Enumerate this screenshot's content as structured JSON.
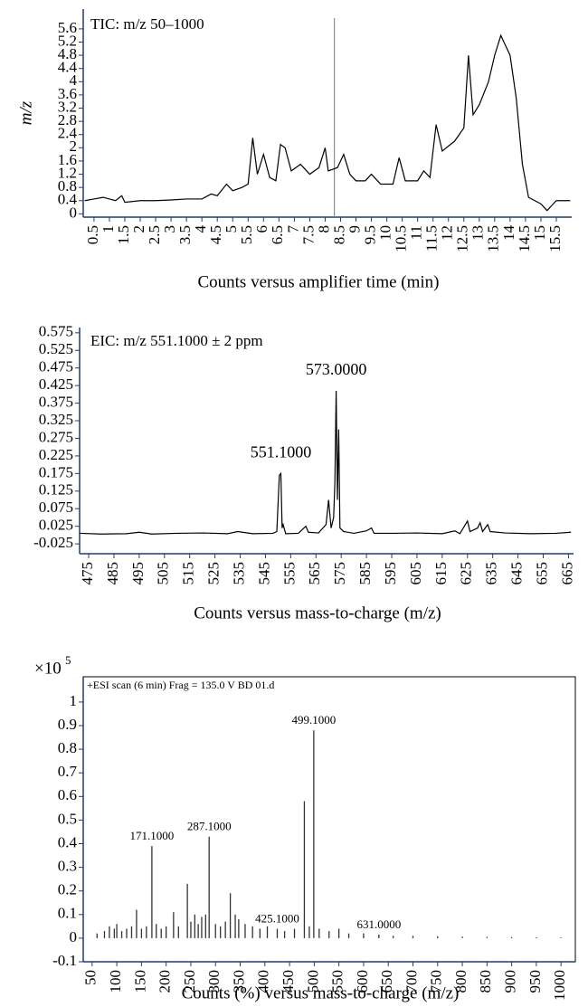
{
  "chart_data": [
    {
      "type": "line",
      "title": "TIC: m/z 50–1000",
      "x_label": "Counts versus amplifier time (min)",
      "y_label": "m/z",
      "xlim": [
        0.15,
        16
      ],
      "ylim": [
        -0.1,
        6.2
      ],
      "xticks": [
        0.5,
        1,
        1.5,
        2,
        2.5,
        3,
        3.5,
        4,
        4.5,
        5,
        5.5,
        6,
        6.5,
        7,
        7.5,
        8,
        8.5,
        9,
        9.5,
        10,
        10.5,
        11,
        11.5,
        12,
        12.5,
        13,
        13.5,
        14,
        14.5,
        15,
        15.5
      ],
      "yticks": [
        0,
        0.4,
        0.8,
        1.2,
        1.6,
        2,
        2.4,
        2.8,
        3.2,
        3.6,
        4,
        4.4,
        4.8,
        5.2,
        5.6
      ],
      "cursor_x": 8.3,
      "series": [
        {
          "color": "#000000",
          "x": [
            0.2,
            0.5,
            0.8,
            1.0,
            1.2,
            1.4,
            1.5,
            2,
            2.5,
            3,
            3.5,
            4,
            4.3,
            4.5,
            4.8,
            5,
            5.3,
            5.5,
            5.65,
            5.8,
            6.0,
            6.2,
            6.4,
            6.55,
            6.7,
            6.9,
            7.2,
            7.5,
            7.8,
            8.0,
            8.1,
            8.4,
            8.6,
            8.8,
            9,
            9.3,
            9.5,
            9.8,
            10.2,
            10.4,
            10.6,
            11,
            11.2,
            11.4,
            11.6,
            11.8,
            12.2,
            12.5,
            12.65,
            12.8,
            13,
            13.3,
            13.5,
            13.7,
            13.85,
            14.0,
            14.2,
            14.4,
            14.6,
            15,
            15.2,
            15.4,
            15.5,
            15.95
          ],
          "values": [
            0.4,
            0.45,
            0.5,
            0.45,
            0.4,
            0.55,
            0.35,
            0.4,
            0.4,
            0.42,
            0.45,
            0.45,
            0.6,
            0.55,
            0.9,
            0.7,
            0.8,
            0.9,
            2.3,
            1.2,
            1.8,
            1.1,
            1.0,
            2.1,
            2.0,
            1.3,
            1.5,
            1.2,
            1.4,
            2.0,
            1.3,
            1.4,
            1.8,
            1.2,
            1.0,
            1.0,
            1.2,
            0.9,
            0.9,
            1.7,
            1.0,
            1.0,
            1.3,
            1.1,
            2.7,
            1.9,
            2.2,
            2.6,
            4.8,
            3.0,
            3.3,
            4.0,
            4.8,
            5.4,
            5.1,
            4.8,
            3.5,
            1.5,
            0.5,
            0.3,
            0.1,
            0.3,
            0.4,
            0.4
          ]
        }
      ]
    },
    {
      "type": "line",
      "title": "EIC: m/z 551.1000 ± 2 ppm",
      "x_label": "Counts versus mass-to-charge (m/z)",
      "xlim": [
        471.4,
        667
      ],
      "ylim": [
        -0.053,
        0.59
      ],
      "xticks": [
        475,
        485,
        495,
        505,
        515,
        525,
        535,
        545,
        555,
        565,
        575,
        585,
        595,
        605,
        615,
        625,
        635,
        645,
        655,
        665
      ],
      "yticks": [
        -0.025,
        0.025,
        0.075,
        0.125,
        0.175,
        0.225,
        0.275,
        0.325,
        0.375,
        0.425,
        0.475,
        0.525,
        0.575
      ],
      "peak_labels": [
        {
          "x": 551.1,
          "label": "551.1000"
        },
        {
          "x": 573,
          "label": "573.0000"
        }
      ],
      "series": [
        {
          "color": "#000000",
          "x": [
            471.5,
            480,
            490,
            495,
            500,
            510,
            520,
            530,
            534,
            540,
            548,
            549.5,
            550.5,
            551.1,
            551.6,
            552,
            553,
            558,
            561,
            562,
            566,
            569,
            570,
            571,
            572,
            572.5,
            573,
            573.5,
            574,
            574.5,
            576,
            580,
            585,
            587,
            588,
            595,
            605,
            615,
            620,
            622,
            625,
            626,
            629,
            630,
            631,
            633,
            634,
            640,
            650,
            660,
            666
          ],
          "values": [
            0.005,
            0.003,
            0.004,
            0.008,
            0.003,
            0.005,
            0.006,
            0.004,
            0.01,
            0.004,
            0.005,
            0.01,
            0.17,
            0.175,
            0.02,
            0.03,
            0.004,
            0.005,
            0.025,
            0.008,
            0.006,
            0.03,
            0.1,
            0.02,
            0.05,
            0.15,
            0.41,
            0.1,
            0.3,
            0.02,
            0.01,
            0.005,
            0.012,
            0.02,
            0.005,
            0.005,
            0.006,
            0.004,
            0.012,
            0.004,
            0.04,
            0.01,
            0.02,
            0.035,
            0.01,
            0.03,
            0.01,
            0.006,
            0.004,
            0.005,
            0.008
          ]
        }
      ]
    },
    {
      "type": "bar",
      "title": "+ESI scan (6 min) Frag = 135.0 V BD 01.d",
      "x_label": "Counts (%) versus mass-to-charge (m/z)",
      "y_multiplier": {
        "base": "×10",
        "exponent": "5"
      },
      "xlim": [
        32,
        1029
      ],
      "ylim": [
        -0.1,
        1.107
      ],
      "xticks": [
        50,
        100,
        150,
        200,
        250,
        300,
        350,
        400,
        450,
        500,
        550,
        600,
        650,
        700,
        750,
        800,
        850,
        900,
        950,
        1000
      ],
      "yticks": [
        -0.1,
        0,
        0.1,
        0.2,
        0.3,
        0.4,
        0.5,
        0.6,
        0.7,
        0.8,
        0.9,
        1
      ],
      "peak_labels": [
        {
          "x": 171.1,
          "label": "171.1000"
        },
        {
          "x": 287.1,
          "label": "287.1000"
        },
        {
          "x": 425.1,
          "label": "425.1000"
        },
        {
          "x": 499.1,
          "label": "499.1000"
        },
        {
          "x": 631,
          "label": "631.0000"
        }
      ],
      "series": [
        {
          "color": "#333333",
          "x": [
            60,
            75,
            85,
            95,
            100,
            110,
            120,
            130,
            140,
            150,
            160,
            171.1,
            180,
            190,
            200,
            215,
            225,
            243,
            250,
            258,
            265,
            272,
            280,
            287.1,
            300,
            310,
            320,
            330,
            340,
            347,
            360,
            375,
            390,
            405,
            425.1,
            440,
            460,
            480,
            490,
            499.1,
            510,
            530,
            550,
            570,
            600,
            631,
            660,
            700,
            750,
            800,
            850,
            900,
            950,
            1000
          ],
          "values": [
            0.02,
            0.03,
            0.05,
            0.04,
            0.06,
            0.03,
            0.04,
            0.05,
            0.12,
            0.04,
            0.05,
            0.39,
            0.06,
            0.04,
            0.05,
            0.11,
            0.05,
            0.23,
            0.07,
            0.1,
            0.06,
            0.09,
            0.1,
            0.43,
            0.06,
            0.05,
            0.07,
            0.19,
            0.1,
            0.08,
            0.06,
            0.05,
            0.04,
            0.05,
            0.04,
            0.03,
            0.04,
            0.58,
            0.05,
            0.88,
            0.04,
            0.03,
            0.04,
            0.02,
            0.02,
            0.015,
            0.01,
            0.01,
            0.008,
            0.006,
            0.005,
            0.004,
            0.004,
            0.003
          ]
        }
      ]
    }
  ]
}
